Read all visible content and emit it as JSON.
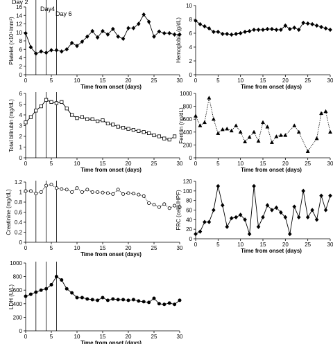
{
  "chart_data": [
    {
      "id": "platelet",
      "type": "line",
      "marker": "diamond-filled",
      "line_style": "solid",
      "ylabel": "Platelet (×10⁴/mm³)",
      "xlabel": "Time from onset (days)",
      "xlim": [
        0,
        30
      ],
      "xticks": [
        0,
        5,
        10,
        15,
        20,
        25,
        30
      ],
      "ylim": [
        0,
        16
      ],
      "yticks": [
        0,
        2,
        4,
        6,
        8,
        10,
        12,
        14,
        16
      ],
      "x": [
        0,
        1,
        2,
        3,
        4,
        5,
        6,
        7,
        8,
        9,
        10,
        11,
        12,
        13,
        14,
        15,
        16,
        17,
        18,
        19,
        20,
        21,
        22,
        23,
        24,
        25,
        26,
        27,
        28,
        29,
        30
      ],
      "y": [
        9.8,
        6.5,
        5.0,
        5.5,
        5.2,
        5.8,
        5.8,
        5.5,
        6.0,
        7.5,
        6.8,
        7.8,
        9.0,
        10.3,
        8.8,
        10.3,
        9.5,
        10.8,
        9.0,
        8.5,
        11.0,
        11.0,
        12.0,
        14.2,
        12.5,
        9.0,
        10.2,
        9.8,
        9.8,
        9.5,
        9.5
      ],
      "day_markers": [
        2,
        4,
        6
      ],
      "day_labels": [
        "Day 2",
        "Day4",
        "Day 6"
      ]
    },
    {
      "id": "hemoglobin",
      "type": "line",
      "marker": "diamond-filled",
      "line_style": "solid",
      "ylabel": "Hemoglobin (g/dL)",
      "xlabel": "Time from onset (days)",
      "xlim": [
        0,
        30
      ],
      "xticks": [
        0,
        5,
        10,
        15,
        20,
        25,
        30
      ],
      "ylim": [
        0,
        10
      ],
      "yticks": [
        0,
        2,
        4,
        6,
        8,
        10
      ],
      "x": [
        0,
        1,
        2,
        3,
        4,
        5,
        6,
        7,
        8,
        9,
        10,
        11,
        12,
        13,
        14,
        15,
        16,
        17,
        18,
        19,
        20,
        21,
        22,
        23,
        24,
        25,
        26,
        27,
        28,
        29,
        30
      ],
      "y": [
        7.8,
        7.3,
        7.0,
        6.7,
        6.2,
        6.2,
        5.9,
        5.9,
        5.8,
        5.9,
        6.0,
        6.2,
        6.3,
        6.5,
        6.5,
        6.5,
        6.6,
        6.6,
        6.5,
        6.5,
        7.1,
        6.6,
        6.8,
        6.5,
        7.5,
        7.4,
        7.3,
        7.1,
        6.9,
        6.7,
        6.5
      ],
      "day_markers": []
    },
    {
      "id": "bilirubin",
      "type": "line",
      "marker": "square-open",
      "line_style": "solid",
      "ylabel": "Total bilirubin (mg/dL)",
      "xlabel": "Time from onset (days)",
      "xlim": [
        0,
        30
      ],
      "xticks": [
        0,
        5,
        10,
        15,
        20,
        25,
        30
      ],
      "ylim": [
        0,
        6
      ],
      "yticks": [
        0,
        1,
        2,
        3,
        4,
        5,
        6
      ],
      "x": [
        0,
        1,
        2,
        3,
        4,
        5,
        6,
        7,
        8,
        9,
        10,
        11,
        12,
        13,
        14,
        15,
        16,
        17,
        18,
        19,
        20,
        21,
        22,
        23,
        24,
        25,
        26,
        27,
        28,
        29
      ],
      "y": [
        3.3,
        3.8,
        4.4,
        4.8,
        5.4,
        5.2,
        5.1,
        5.2,
        4.6,
        4.0,
        3.7,
        3.8,
        3.6,
        3.6,
        3.4,
        3.5,
        3.2,
        3.1,
        2.9,
        2.8,
        2.7,
        2.6,
        2.5,
        2.4,
        2.3,
        2.1,
        2.0,
        1.8,
        1.7,
        2.0
      ],
      "day_markers": [
        2,
        4,
        6
      ]
    },
    {
      "id": "ferritin",
      "type": "line",
      "marker": "triangle-filled",
      "line_style": "dotted",
      "ylabel": "Ferritin (ng/dL)",
      "xlabel": "Time from onset (days)",
      "xlim": [
        0,
        30
      ],
      "xticks": [
        0,
        5,
        10,
        15,
        20,
        25,
        30
      ],
      "ylim": [
        0,
        1000
      ],
      "yticks": [
        0,
        200,
        400,
        600,
        800,
        1000
      ],
      "x": [
        0,
        1,
        2,
        3,
        4,
        5,
        6,
        7,
        8,
        9,
        10,
        11,
        12,
        13,
        14,
        15,
        16,
        17,
        18,
        19,
        20,
        22,
        23,
        25,
        27,
        28,
        29,
        30
      ],
      "y": [
        650,
        500,
        550,
        930,
        600,
        380,
        440,
        450,
        420,
        500,
        400,
        250,
        320,
        400,
        260,
        550,
        480,
        240,
        330,
        350,
        350,
        500,
        400,
        100,
        300,
        690,
        720,
        400
      ],
      "day_markers": []
    },
    {
      "id": "creatinine",
      "type": "line",
      "marker": "circle-open",
      "line_style": "dotted",
      "ylabel": "Creatinine (mg/dL)",
      "xlabel": "Time from onset (days)",
      "xlim": [
        0,
        30
      ],
      "xticks": [
        0,
        5,
        10,
        15,
        20,
        25,
        30
      ],
      "ylim": [
        0,
        1.2
      ],
      "yticks": [
        0,
        0.2,
        0.4,
        0.6,
        0.8,
        1.0,
        1.2
      ],
      "ytick_labels": [
        "0",
        "0.2",
        "0.4",
        "0.6",
        "0.8",
        "1",
        "1.2"
      ],
      "x": [
        0,
        1,
        2,
        3,
        4,
        5,
        6,
        7,
        8,
        9,
        10,
        11,
        12,
        13,
        14,
        15,
        16,
        17,
        18,
        19,
        20,
        21,
        22,
        23,
        24,
        25,
        26,
        27,
        28,
        29,
        30
      ],
      "y": [
        1.02,
        1.02,
        0.97,
        1.0,
        1.13,
        1.15,
        1.08,
        1.06,
        1.05,
        1.0,
        1.08,
        1.0,
        1.05,
        1.0,
        1.0,
        0.99,
        0.98,
        0.96,
        1.05,
        0.96,
        0.98,
        0.97,
        0.95,
        0.92,
        0.78,
        0.75,
        0.7,
        0.76,
        0.68,
        0.73,
        0.7
      ],
      "day_markers": [
        2,
        4,
        6
      ]
    },
    {
      "id": "frc",
      "type": "line",
      "marker": "diamond-filled",
      "line_style": "solid",
      "ylabel": "FRC (cells/HPF)",
      "xlabel": "Time from onset (days)",
      "xlim": [
        0,
        30
      ],
      "xticks": [
        0,
        5,
        10,
        15,
        20,
        25,
        30
      ],
      "ylim": [
        0,
        120
      ],
      "yticks": [
        0,
        20,
        40,
        60,
        80,
        100,
        120
      ],
      "x": [
        0,
        1,
        2,
        3,
        4,
        5,
        6,
        7,
        8,
        9,
        10,
        11,
        12,
        13,
        14,
        15,
        16,
        17,
        18,
        19,
        20,
        21,
        22,
        23,
        24,
        25,
        26,
        27,
        28,
        29,
        30
      ],
      "y": [
        10,
        15,
        35,
        35,
        60,
        110,
        70,
        25,
        43,
        45,
        50,
        40,
        10,
        110,
        25,
        45,
        70,
        60,
        65,
        55,
        45,
        10,
        67,
        45,
        100,
        45,
        60,
        40,
        90,
        60,
        90
      ],
      "day_markers": []
    },
    {
      "id": "ldh",
      "type": "line",
      "marker": "circle-filled",
      "line_style": "solid",
      "ylabel": "LDH (U/L)",
      "xlabel": "Time from onset (days)",
      "xlim": [
        0,
        30
      ],
      "xticks": [
        0,
        5,
        10,
        15,
        20,
        25,
        30
      ],
      "ylim": [
        0,
        1000
      ],
      "yticks": [
        0,
        200,
        400,
        600,
        800,
        1000
      ],
      "x": [
        0,
        1,
        2,
        3,
        4,
        5,
        6,
        7,
        8,
        9,
        10,
        11,
        12,
        13,
        14,
        15,
        16,
        17,
        18,
        19,
        20,
        21,
        22,
        23,
        24,
        25,
        26,
        27,
        28,
        29,
        30
      ],
      "y": [
        510,
        540,
        570,
        600,
        620,
        680,
        800,
        750,
        620,
        560,
        490,
        490,
        470,
        460,
        450,
        490,
        450,
        470,
        460,
        460,
        450,
        460,
        440,
        430,
        420,
        480,
        400,
        390,
        410,
        390,
        450
      ],
      "day_markers": [
        2,
        4,
        6
      ]
    }
  ]
}
